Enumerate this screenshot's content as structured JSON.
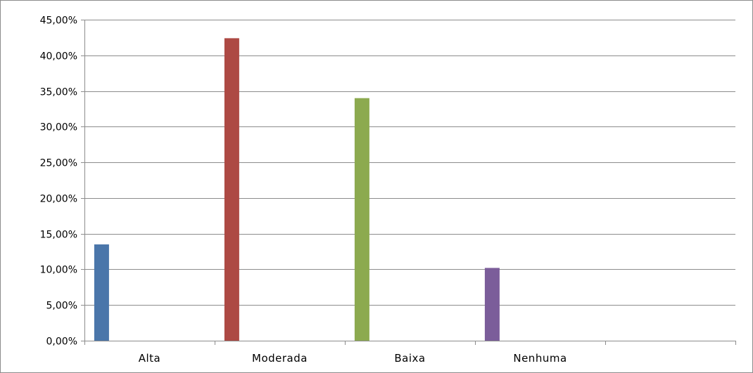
{
  "chart_data": {
    "type": "bar",
    "categories": [
      "Alta",
      "Moderada",
      "Baixa",
      "Nenhuma",
      ""
    ],
    "series": [
      {
        "values": [
          13.5,
          42.4,
          34.0,
          10.2,
          null
        ]
      }
    ],
    "bar_colors": [
      "#4a76aa",
      "#ad4944",
      "#8caa4f",
      "#7b5d9a"
    ],
    "ylim": [
      0,
      45
    ],
    "yticks": [
      0,
      5,
      10,
      15,
      20,
      25,
      30,
      35,
      40,
      45
    ],
    "ytick_labels": [
      "0,00%",
      "5,00%",
      "10,00%",
      "15,00%",
      "20,00%",
      "25,00%",
      "30,00%",
      "35,00%",
      "40,00%",
      "45,00%"
    ],
    "grid": true,
    "legend": "none"
  }
}
